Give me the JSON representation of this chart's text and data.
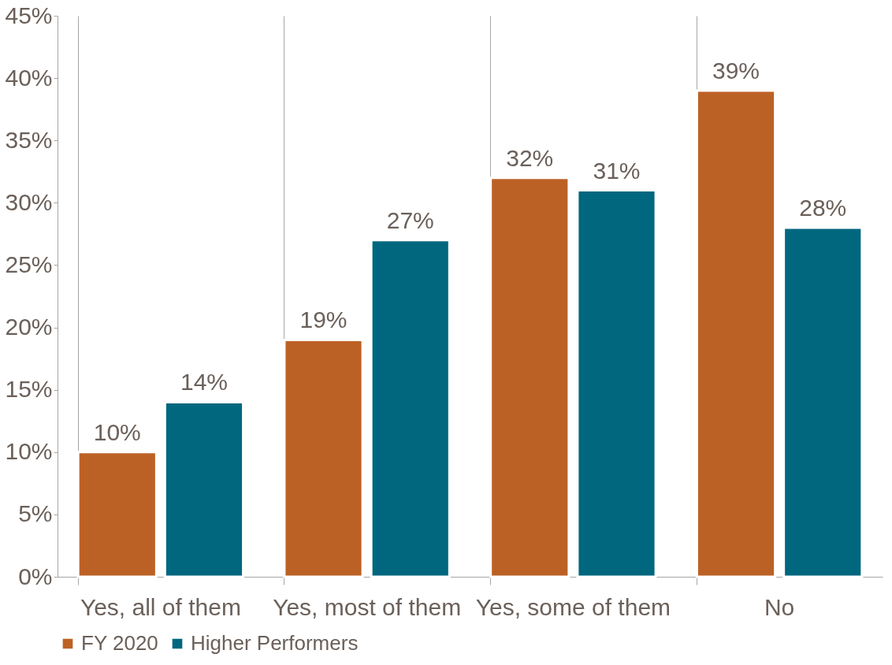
{
  "chart_data": {
    "type": "bar",
    "categories": [
      "Yes, all of them",
      "Yes, most of them",
      "Yes, some of them",
      "No"
    ],
    "series": [
      {
        "name": "FY 2020",
        "color": "#bc6125",
        "values": [
          10,
          19,
          32,
          39
        ],
        "value_labels": [
          "10%",
          "19%",
          "32%",
          "39%"
        ]
      },
      {
        "name": "Higher Performers",
        "color": "#00677f",
        "values": [
          14,
          27,
          31,
          28
        ],
        "value_labels": [
          "14%",
          "27%",
          "31%",
          "28%"
        ]
      }
    ],
    "ylim": [
      0,
      45
    ],
    "yticks": [
      {
        "value": 0,
        "label": "0%"
      },
      {
        "value": 5,
        "label": "5%"
      },
      {
        "value": 10,
        "label": "10%"
      },
      {
        "value": 15,
        "label": "15%"
      },
      {
        "value": 20,
        "label": "20%"
      },
      {
        "value": 25,
        "label": "25%"
      },
      {
        "value": 30,
        "label": "30%"
      },
      {
        "value": 35,
        "label": "35%"
      },
      {
        "value": 40,
        "label": "40%"
      },
      {
        "value": 45,
        "label": "45%"
      }
    ],
    "grid": "x",
    "legend": "bottom"
  }
}
